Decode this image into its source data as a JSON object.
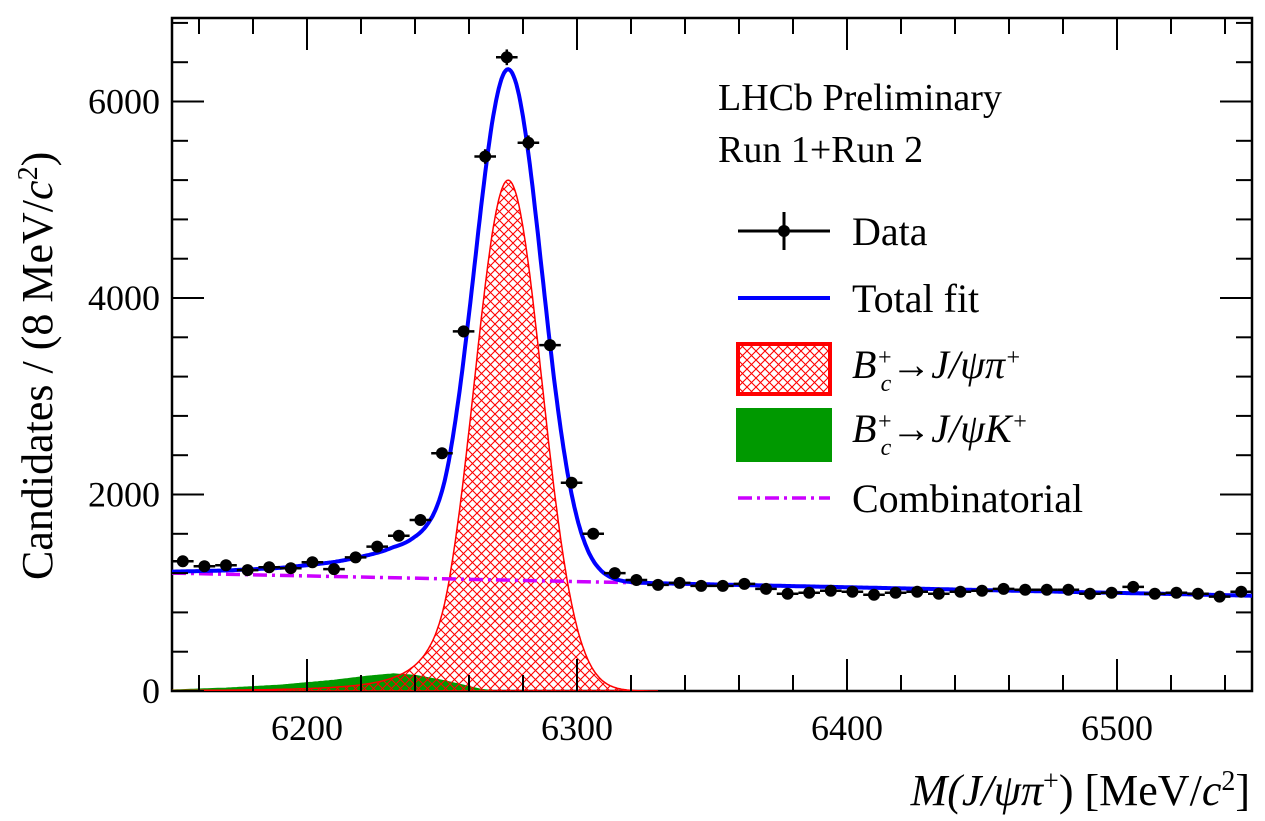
{
  "chart_data": {
    "type": "line",
    "annotation_lines": [
      "LHCb Preliminary",
      "Run 1+Run 2"
    ],
    "xlabel": {
      "pre": "M(J/",
      "psi": "ψ",
      "pi": "π",
      "sup": "+",
      "post": ") [MeV/",
      "c": "c",
      "sq": "2",
      "close": "]"
    },
    "ylabel": {
      "main": "Candidates / (8 MeV/",
      "c": "c",
      "sq": "2",
      "close": ")"
    },
    "xlim": [
      6150,
      6550
    ],
    "ylim": [
      0,
      6850
    ],
    "xticks": [
      6200,
      6300,
      6400,
      6500
    ],
    "yticks": [
      0,
      2000,
      4000,
      6000
    ],
    "x_tick_labels": [
      "6200",
      "6300",
      "6400",
      "6500"
    ],
    "y_tick_labels": [
      "0",
      "2000",
      "4000",
      "6000"
    ],
    "bin_width": 8,
    "legend_position": "right",
    "legend": [
      {
        "key": "data",
        "label": "Data"
      },
      {
        "key": "total",
        "label": "Total fit"
      },
      {
        "key": "signal",
        "label_html": "B<tspan baseline-shift=\"super\" font-size=\"24\">+</tspan><tspan dx=\"-12\" baseline-shift=\"sub\" font-size=\"24\">c</tspan>→J/ψπ<tspan baseline-shift=\"super\" font-size=\"24\">+</tspan>"
      },
      {
        "key": "kaon",
        "label_html": "B<tspan baseline-shift=\"super\" font-size=\"24\">+</tspan><tspan dx=\"-12\" baseline-shift=\"sub\" font-size=\"24\">c</tspan>→J/ψK<tspan baseline-shift=\"super\" font-size=\"24\">+</tspan>"
      },
      {
        "key": "comb",
        "label": "Combinatorial"
      }
    ],
    "colors": {
      "total": "#0000ff",
      "signal": "#ff0000",
      "kaon": "#009900",
      "comb": "#cc00ff",
      "data": "#000000"
    },
    "series": [
      {
        "key": "data",
        "x": [
          6154,
          6162,
          6170,
          6178,
          6186,
          6194,
          6202,
          6210,
          6218,
          6226,
          6234,
          6242,
          6250,
          6258,
          6266,
          6274,
          6282,
          6290,
          6298,
          6306,
          6314,
          6322,
          6330,
          6338,
          6346,
          6354,
          6362,
          6370,
          6378,
          6386,
          6394,
          6402,
          6410,
          6418,
          6426,
          6434,
          6442,
          6450,
          6458,
          6466,
          6474,
          6482,
          6490,
          6498,
          6506,
          6514,
          6522,
          6530,
          6538,
          6546
        ],
        "y": [
          1320,
          1270,
          1280,
          1230,
          1260,
          1250,
          1310,
          1240,
          1360,
          1470,
          1580,
          1740,
          2420,
          3660,
          5440,
          6450,
          5580,
          3520,
          2120,
          1600,
          1200,
          1130,
          1080,
          1100,
          1070,
          1070,
          1090,
          1040,
          990,
          1000,
          1020,
          1010,
          980,
          1000,
          1010,
          990,
          1010,
          1020,
          1040,
          1030,
          1030,
          1030,
          990,
          1000,
          1060,
          990,
          1000,
          990,
          960,
          1010
        ],
        "yerr": [
          36,
          36,
          36,
          35,
          35,
          35,
          36,
          35,
          37,
          38,
          40,
          42,
          49,
          60,
          74,
          80,
          75,
          59,
          46,
          40,
          35,
          34,
          33,
          33,
          33,
          33,
          33,
          32,
          31,
          32,
          32,
          32,
          31,
          32,
          32,
          31,
          32,
          32,
          32,
          32,
          32,
          32,
          31,
          32,
          33,
          31,
          32,
          31,
          31,
          32
        ]
      },
      {
        "key": "comb",
        "x": [
          6150,
          6550
        ],
        "y": [
          1200,
          970
        ]
      },
      {
        "key": "signal",
        "mean": 6274.5,
        "sigma": 12.5,
        "peak": 5200,
        "tail_alpha": 1.8,
        "tail_n": 3
      },
      {
        "key": "kaon",
        "x": [
          6150,
          6170,
          6190,
          6210,
          6222,
          6232,
          6240,
          6250,
          6258,
          6264,
          6270
        ],
        "y": [
          10,
          30,
          60,
          110,
          150,
          175,
          160,
          110,
          60,
          20,
          0
        ]
      }
    ]
  }
}
